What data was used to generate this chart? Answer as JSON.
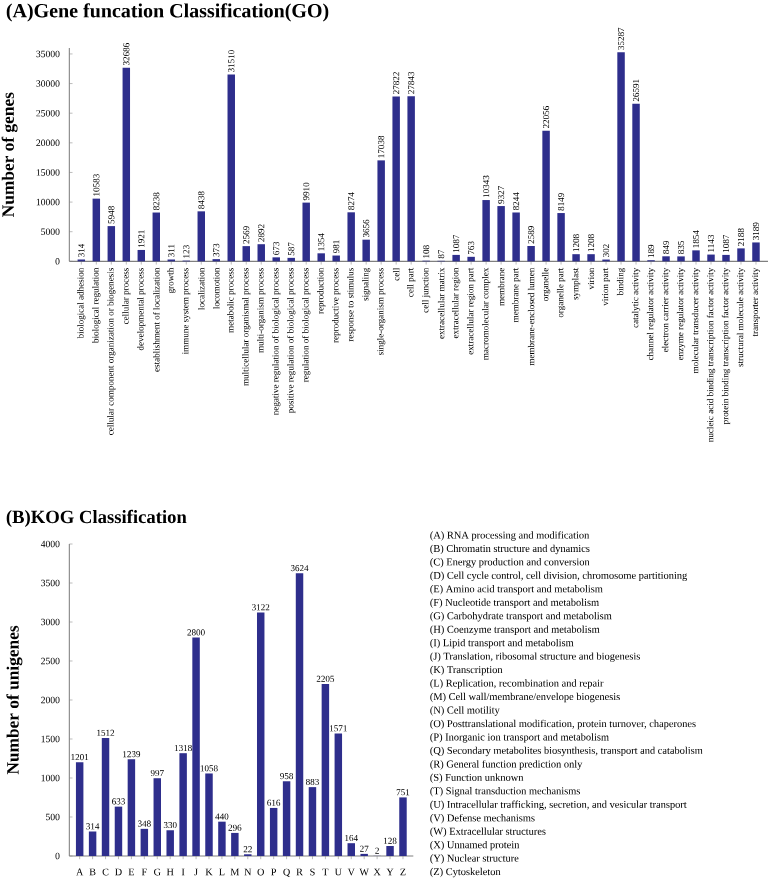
{
  "chart_data": [
    {
      "type": "bar",
      "title": "(A)Gene funcation Classification(GO)",
      "ylabel": "Number of genes",
      "color": "#2e2e8c",
      "data_labels": true,
      "categories": [
        "biological adhesion",
        "biological regulation",
        "cellular component organization or biogenesis",
        "cellular process",
        "developmental process",
        "establishment of localization",
        "growth",
        "immune system process",
        "localization",
        "locomotion",
        "metabolic process",
        "multicellular organismal process",
        "multi-organism process",
        "negative regulation of biological process",
        "positive regulation of biological process",
        "regulation of biological process",
        "reproduction",
        "reproductive process",
        "response to stimulus",
        "signaling",
        "single-organism process",
        "cell",
        "cell part",
        "cell junction",
        "extracellular matrix",
        "extracellular region",
        "extracellular region part",
        "macromolecular complex",
        "membrane",
        "membrane part",
        "membrane-enclosed lumen",
        "organelle",
        "organelle part",
        "symplast",
        "virion",
        "virion part",
        "binding",
        "catalytic activity",
        "channel regulator activity",
        "electron carrier activity",
        "enzyme regulator activity",
        "molecular transducer activity",
        "nucleic acid binding transcription factor activity",
        "protein binding transcription factor activity",
        "structural molecule activity",
        "transporter activity"
      ],
      "values": [
        314,
        10583,
        5948,
        32686,
        1921,
        8238,
        311,
        123,
        8438,
        373,
        31510,
        2569,
        2892,
        673,
        587,
        9910,
        1354,
        981,
        8274,
        3656,
        17038,
        27822,
        27843,
        108,
        87,
        1087,
        763,
        10343,
        9327,
        8244,
        2589,
        22056,
        8149,
        1208,
        1208,
        302,
        35287,
        26591,
        189,
        849,
        835,
        1854,
        1143,
        1087,
        2188,
        3189
      ],
      "ylim": [
        0,
        36000
      ],
      "yticks": [
        0,
        5000,
        10000,
        15000,
        20000,
        25000,
        30000,
        35000
      ]
    },
    {
      "type": "bar",
      "title": "(B)KOG Classification",
      "ylabel": "Number of unigenes",
      "color": "#2e2e8c",
      "data_labels": true,
      "categories": [
        "A",
        "B",
        "C",
        "D",
        "E",
        "F",
        "G",
        "H",
        "I",
        "J",
        "K",
        "L",
        "M",
        "N",
        "O",
        "P",
        "Q",
        "R",
        "S",
        "T",
        "U",
        "V",
        "W",
        "X",
        "Y",
        "Z"
      ],
      "values": [
        1201,
        314,
        1512,
        633,
        1239,
        348,
        997,
        330,
        1318,
        2800,
        1058,
        440,
        296,
        22,
        3122,
        616,
        958,
        3624,
        883,
        2205,
        1571,
        164,
        27,
        2,
        128,
        751
      ],
      "ylim": [
        0,
        4000
      ],
      "yticks": [
        0,
        500,
        1000,
        1500,
        2000,
        2500,
        3000,
        3500,
        4000
      ],
      "annotations": [
        "(A) RNA processing and modification",
        "(B) Chromatin structure and dynamics",
        "(C) Energy production and conversion",
        "(D) Cell cycle control, cell division, chromosome partitioning",
        "(E) Amino acid transport and metabolism",
        "(F) Nucleotide transport and metabolism",
        "(G) Carbohydrate transport and metabolism",
        "(H) Coenzyme transport and metabolism",
        "(I) Lipid transport and metabolism",
        "(J) Translation, ribosomal structure and biogenesis",
        "(K) Transcription",
        "(L) Replication, recombination and repair",
        "(M) Cell wall/membrane/envelope biogenesis",
        "(N) Cell motility",
        "(O) Posttranslational modification, protein turnover, chaperones",
        "(P) Inorganic ion transport and metabolism",
        "(Q) Secondary metabolites biosynthesis, transport and catabolism",
        "(R) General function prediction only",
        "(S) Function unknown",
        "(T) Signal transduction mechanisms",
        "(U) Intracellular trafficking, secretion, and vesicular transport",
        "(V) Defense mechanisms",
        "(W) Extracellular structures",
        "(X) Unnamed protein",
        "(Y) Nuclear structure",
        "(Z) Cytoskeleton"
      ]
    }
  ]
}
